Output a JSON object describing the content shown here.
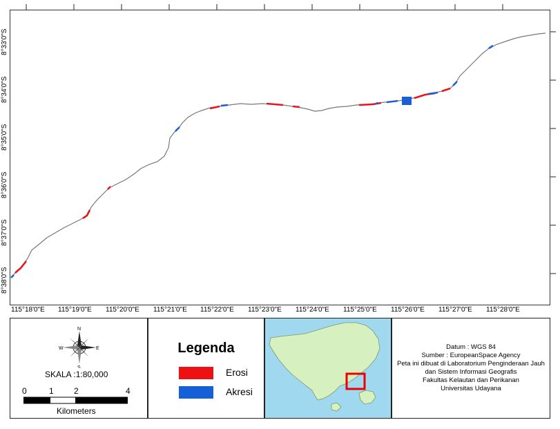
{
  "map": {
    "lon_ticks": [
      "115°18'0\"E",
      "115°19'0\"E",
      "115°20'0\"E",
      "115°21'0\"E",
      "115°22'0\"E",
      "115°23'0\"E",
      "115°24'0\"E",
      "115°25'0\"E",
      "115°26'0\"E",
      "115°27'0\"E",
      "115°28'0\"E"
    ],
    "lat_ticks": [
      "8°33'0\"S",
      "8°34'0\"S",
      "8°35'0\"S",
      "8°36'0\"S",
      "8°37'0\"S",
      "8°38'0\"S"
    ],
    "colors": {
      "erosi": "#e8141c",
      "akresi": "#1a5fd6",
      "coastline": "#666666",
      "sea": "#9fd8ef",
      "land": "#d6f0c0"
    }
  },
  "scale": {
    "compass_n": "N",
    "compass_s": "S",
    "compass_e": "E",
    "compass_w": "W",
    "label": "SKALA :1:80,000",
    "ticks": [
      "0",
      "1",
      "2",
      "4"
    ],
    "unit": "Kilometers"
  },
  "legend": {
    "title": "Legenda",
    "items": [
      {
        "label": "Erosi",
        "color": "#ee1111"
      },
      {
        "label": "Akresi",
        "color": "#1560d8"
      }
    ]
  },
  "credits": {
    "lines": [
      "Datum : WGS 84",
      "Sumber : EuropeanSpace Agency",
      "Peta ini dibuat di Laboratorium Penginderaan Jauh",
      "dan Sistem Informasi Geografis",
      "Fakultas Kelautan dan Perikanan",
      "Universitas Udayana"
    ]
  }
}
